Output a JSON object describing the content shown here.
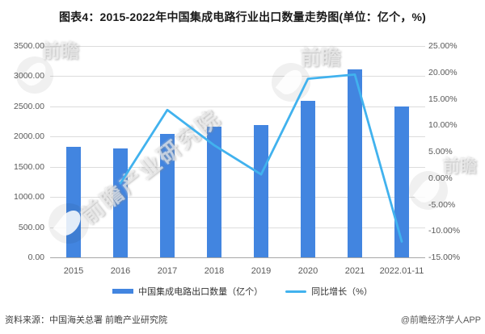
{
  "title": "图表4：2015-2022年中国集成电路行业出口数量走势图(单位：亿个，%)",
  "footer": {
    "source": "资料来源：中国海关总署 前瞻产业研究院",
    "credit": "@前瞻经济学人APP"
  },
  "watermark": {
    "main": "前瞻产业研究院",
    "logo_text": "前瞻"
  },
  "colors": {
    "bar": "#4285e0",
    "line": "#41b2ee",
    "grid": "#dcdcdc",
    "axis_line": "#a6a6a6",
    "axis_text": "#595959",
    "title_text": "#1a1a1a"
  },
  "chart_data": {
    "type": "bar",
    "title": "图表4：2015-2022年中国集成电路行业出口数量走势图(单位：亿个，%)",
    "categories": [
      "2015",
      "2016",
      "2017",
      "2018",
      "2019",
      "2020",
      "2021",
      "2022.01-11"
    ],
    "series": [
      {
        "name": "中国集成电路出口数量（亿个）",
        "type": "bar",
        "axis": "left",
        "values": [
          1828,
          1810,
          2043,
          2171,
          2187,
          2598,
          3107,
          2504
        ]
      },
      {
        "name": "同比增长（%）",
        "type": "line",
        "axis": "right",
        "values": [
          null,
          -1.0,
          12.9,
          6.2,
          0.7,
          18.8,
          19.6,
          -12.0
        ]
      }
    ],
    "left_axis": {
      "min": 0,
      "max": 3500,
      "step": 500,
      "decimals": 2,
      "suffix": ""
    },
    "right_axis": {
      "min": -15,
      "max": 25,
      "step": 5,
      "decimals": 2,
      "suffix": "%"
    },
    "grid": true,
    "legend_position": "bottom"
  }
}
